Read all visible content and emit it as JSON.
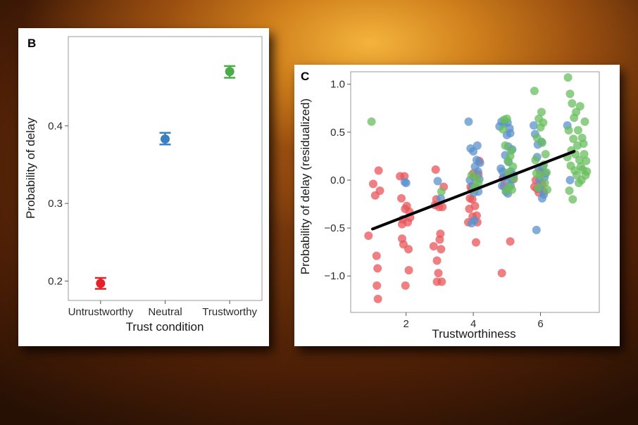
{
  "chart_data": [
    {
      "panel": "B",
      "type": "scatter",
      "xlabel": "Trust condition",
      "ylabel": "Probability of delay",
      "categories": [
        "Untrustworthy",
        "Neutral",
        "Trustworthy"
      ],
      "ylim": [
        0.175,
        0.515
      ],
      "yticks": [
        0.2,
        0.3,
        0.4
      ],
      "grid": false,
      "points": [
        {
          "category": "Untrustworthy",
          "y": 0.197,
          "err_low": 0.19,
          "err_high": 0.204,
          "color": "#e32126"
        },
        {
          "category": "Neutral",
          "y": 0.383,
          "err_low": 0.376,
          "err_high": 0.391,
          "color": "#3a7fc1"
        },
        {
          "category": "Trustworthy",
          "y": 0.47,
          "err_low": 0.462,
          "err_high": 0.477,
          "color": "#4aac48"
        }
      ]
    },
    {
      "panel": "C",
      "type": "scatter",
      "xlabel": "Trustworthiness",
      "ylabel": "Probability of delay (residualized)",
      "xlim": [
        0.35,
        7.75
      ],
      "ylim": [
        -1.38,
        1.13
      ],
      "xticks": [
        2,
        4,
        6
      ],
      "yticks": [
        1.0,
        0.5,
        0.0,
        -0.5,
        -1.0
      ],
      "ytick_labels": [
        "1.0",
        "0.5",
        "0.0",
        "−0.5",
        "−1.0"
      ],
      "grid": false,
      "fit_line": {
        "x": [
          1.0,
          7.0
        ],
        "y": [
          -0.51,
          0.3
        ],
        "color": "#000000"
      },
      "series": [
        {
          "color": "#e8555b",
          "points": [
            [
              0.88,
              -0.58
            ],
            [
              1.02,
              -0.04
            ],
            [
              1.08,
              -0.16
            ],
            [
              1.12,
              -0.79
            ],
            [
              1.15,
              -0.92
            ],
            [
              1.13,
              -1.1
            ],
            [
              1.16,
              -1.24
            ],
            [
              1.18,
              0.1
            ],
            [
              1.22,
              -0.11
            ],
            [
              1.82,
              0.04
            ],
            [
              1.86,
              -0.19
            ],
            [
              1.88,
              -0.46
            ],
            [
              1.9,
              -0.41
            ],
            [
              1.88,
              -0.61
            ],
            [
              1.92,
              -0.67
            ],
            [
              1.95,
              0.04
            ],
            [
              1.97,
              -0.3
            ],
            [
              1.98,
              -1.1
            ],
            [
              2.02,
              -0.27
            ],
            [
              2.05,
              -0.44
            ],
            [
              2.07,
              -0.72
            ],
            [
              2.08,
              -0.94
            ],
            [
              2.1,
              -0.33
            ],
            [
              2.12,
              -0.39
            ],
            [
              2.82,
              -0.69
            ],
            [
              2.86,
              -0.26
            ],
            [
              2.88,
              0.11
            ],
            [
              2.9,
              -0.2
            ],
            [
              2.92,
              -0.84
            ],
            [
              2.92,
              -1.06
            ],
            [
              2.96,
              -0.97
            ],
            [
              2.98,
              -0.28
            ],
            [
              3.0,
              -0.62
            ],
            [
              3.02,
              -0.56
            ],
            [
              3.04,
              -0.72
            ],
            [
              3.06,
              -1.06
            ],
            [
              3.08,
              -0.28
            ],
            [
              3.12,
              -0.07
            ],
            [
              3.85,
              -0.44
            ],
            [
              3.88,
              -0.3
            ],
            [
              3.9,
              -0.19
            ],
            [
              3.92,
              -0.07
            ],
            [
              3.95,
              -0.1
            ],
            [
              3.97,
              -0.2
            ],
            [
              3.98,
              -0.38
            ],
            [
              4.0,
              0.07
            ],
            [
              4.03,
              0.03
            ],
            [
              4.05,
              -0.27
            ],
            [
              4.08,
              -0.65
            ],
            [
              4.1,
              -0.37
            ],
            [
              4.12,
              -0.44
            ],
            [
              4.15,
              0.06
            ],
            [
              4.18,
              0.2
            ],
            [
              4.85,
              -0.97
            ],
            [
              4.88,
              0.02
            ],
            [
              4.92,
              -0.06
            ],
            [
              5.0,
              0.05
            ],
            [
              5.1,
              -0.64
            ],
            [
              5.2,
              0.01
            ],
            [
              5.82,
              -0.07
            ],
            [
              5.86,
              0.0
            ],
            [
              5.9,
              -0.09
            ],
            [
              5.95,
              -0.13
            ],
            [
              6.0,
              0.09
            ],
            [
              6.05,
              -0.04
            ],
            [
              6.1,
              -0.12
            ]
          ]
        },
        {
          "color": "#5b92cc",
          "points": [
            [
              1.96,
              -0.02
            ],
            [
              2.0,
              -0.03
            ],
            [
              2.94,
              -0.01
            ],
            [
              3.03,
              -0.19
            ],
            [
              3.86,
              0.61
            ],
            [
              3.92,
              0.33
            ],
            [
              3.95,
              -0.45
            ],
            [
              3.98,
              -0.06
            ],
            [
              4.0,
              0.3
            ],
            [
              4.02,
              -0.13
            ],
            [
              4.05,
              0.14
            ],
            [
              4.07,
              -0.08
            ],
            [
              4.1,
              0.21
            ],
            [
              4.12,
              0.36
            ],
            [
              4.15,
              -0.12
            ],
            [
              4.18,
              0.01
            ],
            [
              4.2,
              0.18
            ],
            [
              3.9,
              0.0
            ],
            [
              4.03,
              -0.42
            ],
            [
              4.14,
              0.09
            ],
            [
              4.78,
              0.56
            ],
            [
              4.82,
              0.12
            ],
            [
              4.84,
              0.61
            ],
            [
              4.87,
              0.09
            ],
            [
              4.9,
              0.03
            ],
            [
              4.92,
              0.59
            ],
            [
              4.95,
              0.26
            ],
            [
              4.97,
              -0.12
            ],
            [
              5.0,
              0.47
            ],
            [
              5.02,
              0.6
            ],
            [
              5.03,
              -0.14
            ],
            [
              5.05,
              0.19
            ],
            [
              5.07,
              0.0
            ],
            [
              5.08,
              0.54
            ],
            [
              5.1,
              0.49
            ],
            [
              5.12,
              0.09
            ],
            [
              5.14,
              0.01
            ],
            [
              5.16,
              0.32
            ],
            [
              5.18,
              0.05
            ],
            [
              5.2,
              0.05
            ],
            [
              4.86,
              -0.06
            ],
            [
              5.04,
              0.35
            ],
            [
              5.11,
              -0.06
            ],
            [
              5.8,
              0.57
            ],
            [
              5.84,
              0.48
            ],
            [
              5.88,
              -0.52
            ],
            [
              5.9,
              0.24
            ],
            [
              5.92,
              0.37
            ],
            [
              5.95,
              0.12
            ],
            [
              5.97,
              0.0
            ],
            [
              6.0,
              -0.09
            ],
            [
              6.03,
              0.4
            ],
            [
              6.05,
              -0.19
            ],
            [
              6.07,
              0.14
            ],
            [
              6.1,
              -0.15
            ],
            [
              6.12,
              0.03
            ],
            [
              6.15,
              0.07
            ],
            [
              6.8,
              0.57
            ],
            [
              6.88,
              0.0
            ]
          ]
        },
        {
          "color": "#69bd5d",
          "points": [
            [
              0.97,
              0.61
            ],
            [
              3.05,
              -0.12
            ],
            [
              3.95,
              0.05
            ],
            [
              4.02,
              -0.09
            ],
            [
              4.08,
              -0.07
            ],
            [
              4.1,
              0.02
            ],
            [
              4.15,
              -0.03
            ],
            [
              4.88,
              0.53
            ],
            [
              4.92,
              0.63
            ],
            [
              4.95,
              0.36
            ],
            [
              4.98,
              -0.11
            ],
            [
              5.0,
              0.64
            ],
            [
              5.03,
              0.2
            ],
            [
              5.05,
              0.08
            ],
            [
              5.07,
              -0.07
            ],
            [
              5.1,
              0.25
            ],
            [
              5.13,
              0.31
            ],
            [
              5.15,
              -0.1
            ],
            [
              5.18,
              0.14
            ],
            [
              5.2,
              0.02
            ],
            [
              5.82,
              0.93
            ],
            [
              5.85,
              0.21
            ],
            [
              5.88,
              0.07
            ],
            [
              5.9,
              0.44
            ],
            [
              5.93,
              -0.08
            ],
            [
              5.95,
              0.64
            ],
            [
              5.98,
              0.05
            ],
            [
              6.0,
              0.55
            ],
            [
              6.03,
              0.71
            ],
            [
              6.05,
              0.39
            ],
            [
              6.08,
              0.6
            ],
            [
              6.1,
              0.16
            ],
            [
              6.13,
              -0.03
            ],
            [
              6.15,
              0.27
            ],
            [
              6.18,
              0.08
            ],
            [
              6.2,
              -0.1
            ],
            [
              6.8,
              0.24
            ],
            [
              6.82,
              1.07
            ],
            [
              6.84,
              0.52
            ],
            [
              6.86,
              -0.11
            ],
            [
              6.88,
              0.9
            ],
            [
              6.9,
              0.15
            ],
            [
              6.92,
              0.31
            ],
            [
              6.94,
              0.8
            ],
            [
              6.96,
              -0.2
            ],
            [
              6.98,
              0.43
            ],
            [
              7.0,
              0.65
            ],
            [
              7.02,
              0.1
            ],
            [
              7.04,
              0.27
            ],
            [
              7.06,
              0.71
            ],
            [
              7.08,
              0.05
            ],
            [
              7.1,
              0.36
            ],
            [
              7.12,
              0.52
            ],
            [
              7.14,
              -0.03
            ],
            [
              7.16,
              0.21
            ],
            [
              7.18,
              0.77
            ],
            [
              7.2,
              0.14
            ],
            [
              7.22,
              0.0
            ],
            [
              7.24,
              0.44
            ],
            [
              7.26,
              0.11
            ],
            [
              7.28,
              0.38
            ],
            [
              7.3,
              0.27
            ],
            [
              7.32,
              0.61
            ],
            [
              7.34,
              0.05
            ],
            [
              7.36,
              0.2
            ],
            [
              7.38,
              0.09
            ]
          ]
        }
      ]
    }
  ]
}
